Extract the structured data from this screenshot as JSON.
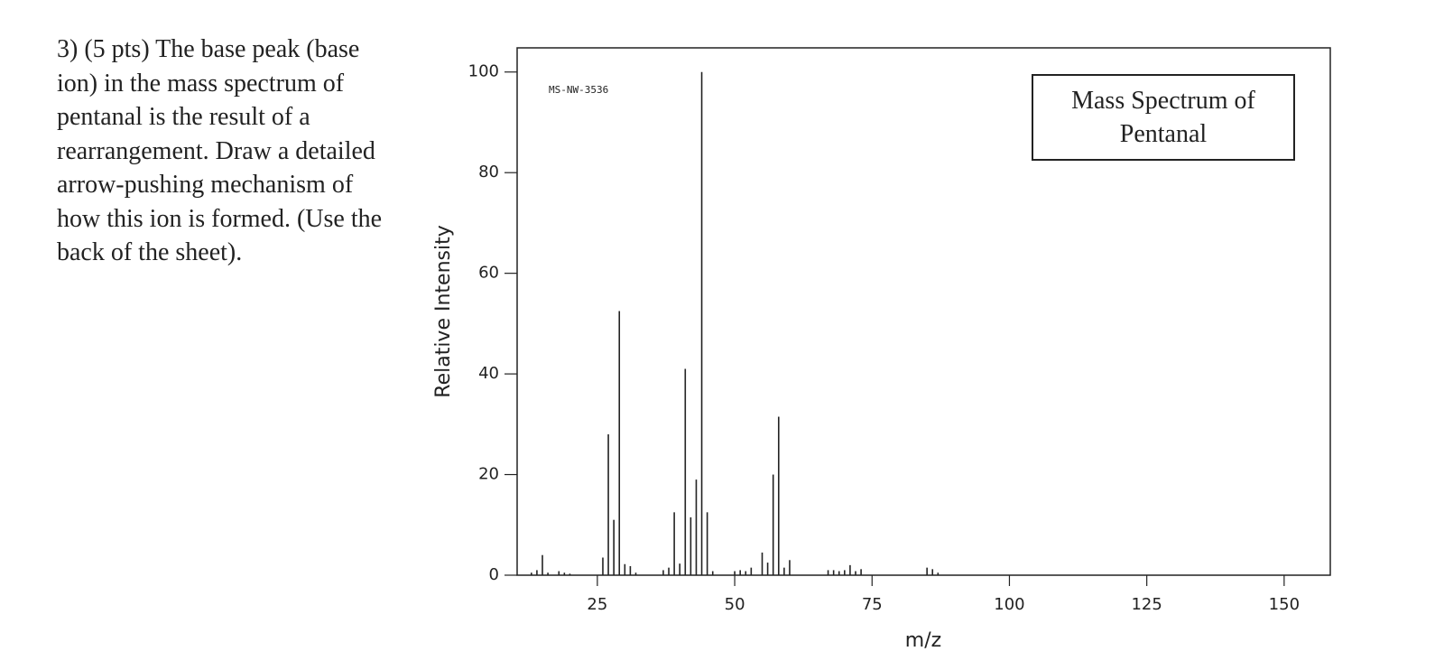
{
  "question": "3) (5 pts) The base peak (base ion) in the mass spectrum of pentanal is the result of a rearrangement. Draw a detailed arrow-pushing mechanism of how this ion is formed. (Use the back of the sheet).",
  "chart_data": {
    "type": "bar",
    "title": "Mass Spectrum of Pentanal",
    "annotation": "MS-NW-3536",
    "x_label": "m/z",
    "y_label": "Relative Intensity",
    "x": [
      13,
      14,
      15,
      16,
      18,
      19,
      20,
      26,
      27,
      28,
      29,
      30,
      31,
      32,
      37,
      38,
      39,
      40,
      41,
      42,
      43,
      44,
      45,
      46,
      50,
      51,
      52,
      53,
      55,
      56,
      57,
      58,
      59,
      60,
      67,
      68,
      69,
      70,
      71,
      72,
      73,
      85,
      86,
      87
    ],
    "values": [
      0.5,
      1,
      4,
      0.5,
      0.8,
      0.5,
      0.3,
      3.5,
      28,
      11,
      52.5,
      2.2,
      1.8,
      0.5,
      1,
      1.5,
      12.5,
      2.3,
      41,
      11.5,
      19,
      100,
      12.5,
      0.8,
      0.8,
      1,
      0.8,
      1.5,
      4.5,
      2.5,
      20,
      31.5,
      1.5,
      3,
      1,
      1,
      0.8,
      1,
      2,
      0.8,
      1.2,
      1.5,
      1.2,
      0.5
    ],
    "color": "#222222",
    "xlim": [
      10.4,
      158.4
    ],
    "ylim": [
      0,
      104.8
    ],
    "xticks": [
      25,
      50,
      75,
      100,
      125,
      150
    ],
    "yticks": [
      0,
      20,
      40,
      60,
      80,
      100
    ]
  }
}
